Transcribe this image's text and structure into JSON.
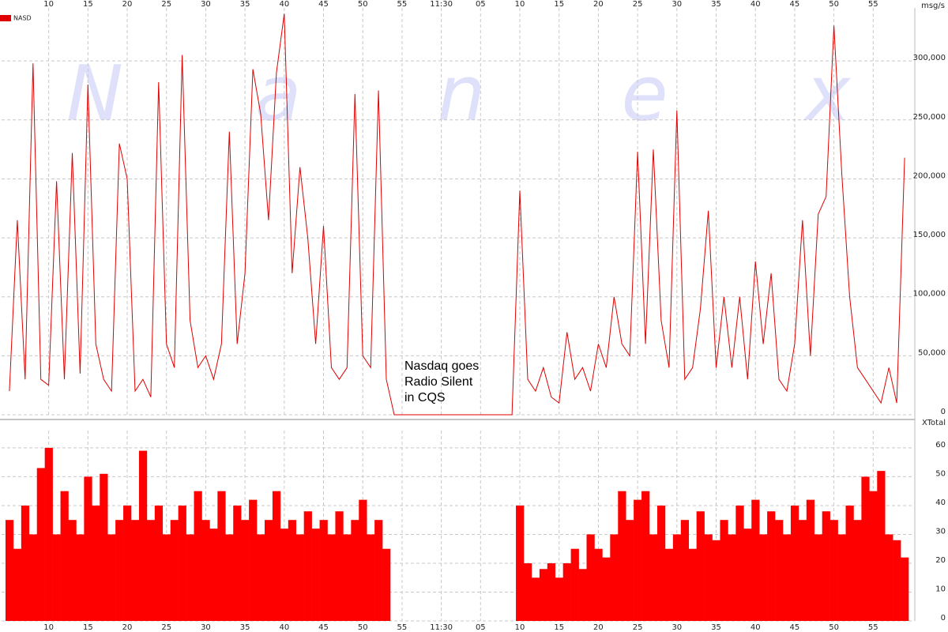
{
  "chart_data": [
    {
      "type": "line",
      "legend": "top-left",
      "grid": true,
      "ylabel": "msg/s",
      "watermark": [
        "N",
        "a",
        "n",
        "e",
        "x"
      ],
      "annotation": [
        "Nasdaq goes",
        "Radio Silent",
        "in CQS"
      ],
      "xlim": [
        4,
        120
      ],
      "xticks": [
        10,
        15,
        20,
        25,
        30,
        35,
        40,
        45,
        50,
        55,
        {
          "value": 60,
          "label": "11:30"
        },
        {
          "value": 65,
          "label": "05"
        },
        {
          "value": 70,
          "label": "10"
        },
        {
          "value": 75,
          "label": "15"
        },
        {
          "value": 80,
          "label": "20"
        },
        {
          "value": 85,
          "label": "25"
        },
        {
          "value": 90,
          "label": "30"
        },
        {
          "value": 95,
          "label": "35"
        },
        {
          "value": 100,
          "label": "40"
        },
        {
          "value": 105,
          "label": "45"
        },
        {
          "value": 110,
          "label": "50"
        },
        {
          "value": 115,
          "label": "55"
        }
      ],
      "ylim": [
        0,
        345000
      ],
      "yticks": [
        0,
        {
          "value": 50000,
          "label": "50,000"
        },
        {
          "value": 100000,
          "label": "100,000"
        },
        {
          "value": 150000,
          "label": "150,000"
        },
        {
          "value": 200000,
          "label": "200,000"
        },
        {
          "value": 250000,
          "label": "250,000"
        },
        {
          "value": 300000,
          "label": "300,000"
        }
      ],
      "x": [
        5,
        6,
        7,
        8,
        9,
        10,
        11,
        12,
        13,
        14,
        15,
        16,
        17,
        18,
        19,
        20,
        21,
        22,
        23,
        24,
        25,
        26,
        27,
        28,
        29,
        30,
        31,
        32,
        33,
        34,
        35,
        36,
        37,
        38,
        39,
        40,
        41,
        42,
        43,
        44,
        45,
        46,
        47,
        48,
        49,
        50,
        51,
        52,
        53,
        54,
        55,
        56,
        57,
        58,
        59,
        60,
        61,
        62,
        63,
        64,
        65,
        66,
        67,
        68,
        69,
        70,
        71,
        72,
        73,
        74,
        75,
        76,
        77,
        78,
        79,
        80,
        81,
        82,
        83,
        84,
        85,
        86,
        87,
        88,
        89,
        90,
        91,
        92,
        93,
        94,
        95,
        96,
        97,
        98,
        99,
        100,
        101,
        102,
        103,
        104,
        105,
        106,
        107,
        108,
        109,
        110,
        111,
        112,
        113,
        114,
        115,
        116,
        117,
        118,
        119
      ],
      "series": [
        {
          "name": "NASD",
          "color": "#e00000",
          "values": [
            20000,
            165000,
            30000,
            298000,
            30000,
            25000,
            198000,
            30000,
            222000,
            35000,
            280000,
            60000,
            30000,
            20000,
            230000,
            200000,
            20000,
            30000,
            15000,
            282000,
            60000,
            40000,
            305000,
            80000,
            40000,
            50000,
            30000,
            60000,
            240000,
            60000,
            120000,
            293000,
            255000,
            165000,
            290000,
            340000,
            120000,
            210000,
            150000,
            60000,
            160000,
            40000,
            30000,
            40000,
            272000,
            50000,
            40000,
            275000,
            30000,
            0,
            0,
            0,
            0,
            0,
            0,
            0,
            0,
            0,
            0,
            0,
            0,
            0,
            0,
            0,
            0,
            190000,
            30000,
            20000,
            40000,
            15000,
            10000,
            70000,
            30000,
            40000,
            20000,
            60000,
            40000,
            100000,
            60000,
            50000,
            223000,
            60000,
            225000,
            80000,
            40000,
            258000,
            30000,
            40000,
            90000,
            173000,
            40000,
            100000,
            40000,
            100000,
            30000,
            130000,
            60000,
            120000,
            30000,
            20000,
            60000,
            165000,
            50000,
            170000,
            185000,
            330000,
            205000,
            100000,
            40000,
            30000,
            20000,
            10000,
            40000,
            10000,
            218000
          ]
        }
      ]
    },
    {
      "type": "bar",
      "grid": true,
      "ylabel": "XTotal",
      "color": "#ff0000",
      "xlim": [
        4,
        120
      ],
      "xticks": [
        10,
        15,
        20,
        25,
        30,
        35,
        40,
        45,
        50,
        55,
        {
          "value": 60,
          "label": "11:30"
        },
        {
          "value": 65,
          "label": "05"
        },
        {
          "value": 70,
          "label": "10"
        },
        {
          "value": 75,
          "label": "15"
        },
        {
          "value": 80,
          "label": "20"
        },
        {
          "value": 85,
          "label": "25"
        },
        {
          "value": 90,
          "label": "30"
        },
        {
          "value": 95,
          "label": "35"
        },
        {
          "value": 100,
          "label": "40"
        },
        {
          "value": 105,
          "label": "45"
        },
        {
          "value": 110,
          "label": "50"
        },
        {
          "value": 115,
          "label": "55"
        }
      ],
      "ylim": [
        0,
        66
      ],
      "yticks": [
        0,
        10,
        20,
        30,
        40,
        50,
        60
      ],
      "x": [
        5,
        6,
        7,
        8,
        9,
        10,
        11,
        12,
        13,
        14,
        15,
        16,
        17,
        18,
        19,
        20,
        21,
        22,
        23,
        24,
        25,
        26,
        27,
        28,
        29,
        30,
        31,
        32,
        33,
        34,
        35,
        36,
        37,
        38,
        39,
        40,
        41,
        42,
        43,
        44,
        45,
        46,
        47,
        48,
        49,
        50,
        51,
        52,
        53,
        54,
        55,
        56,
        57,
        58,
        59,
        60,
        61,
        62,
        63,
        64,
        65,
        66,
        67,
        68,
        69,
        70,
        71,
        72,
        73,
        74,
        75,
        76,
        77,
        78,
        79,
        80,
        81,
        82,
        83,
        84,
        85,
        86,
        87,
        88,
        89,
        90,
        91,
        92,
        93,
        94,
        95,
        96,
        97,
        98,
        99,
        100,
        101,
        102,
        103,
        104,
        105,
        106,
        107,
        108,
        109,
        110,
        111,
        112,
        113,
        114,
        115,
        116,
        117,
        118,
        119
      ],
      "values": [
        35,
        25,
        40,
        30,
        53,
        60,
        30,
        45,
        35,
        30,
        50,
        40,
        51,
        30,
        35,
        40,
        35,
        59,
        35,
        40,
        30,
        35,
        40,
        30,
        45,
        35,
        32,
        45,
        30,
        40,
        35,
        42,
        30,
        35,
        45,
        32,
        35,
        30,
        38,
        32,
        35,
        30,
        38,
        30,
        35,
        42,
        30,
        35,
        25,
        0,
        0,
        0,
        0,
        0,
        0,
        0,
        0,
        0,
        0,
        0,
        0,
        0,
        0,
        0,
        0,
        40,
        20,
        15,
        18,
        20,
        15,
        20,
        25,
        18,
        30,
        25,
        22,
        30,
        45,
        35,
        42,
        45,
        30,
        40,
        25,
        30,
        35,
        25,
        38,
        30,
        28,
        35,
        30,
        40,
        32,
        42,
        30,
        38,
        35,
        30,
        40,
        35,
        42,
        30,
        38,
        35,
        30,
        40,
        35,
        50,
        45,
        52,
        30,
        28,
        22
      ]
    }
  ]
}
